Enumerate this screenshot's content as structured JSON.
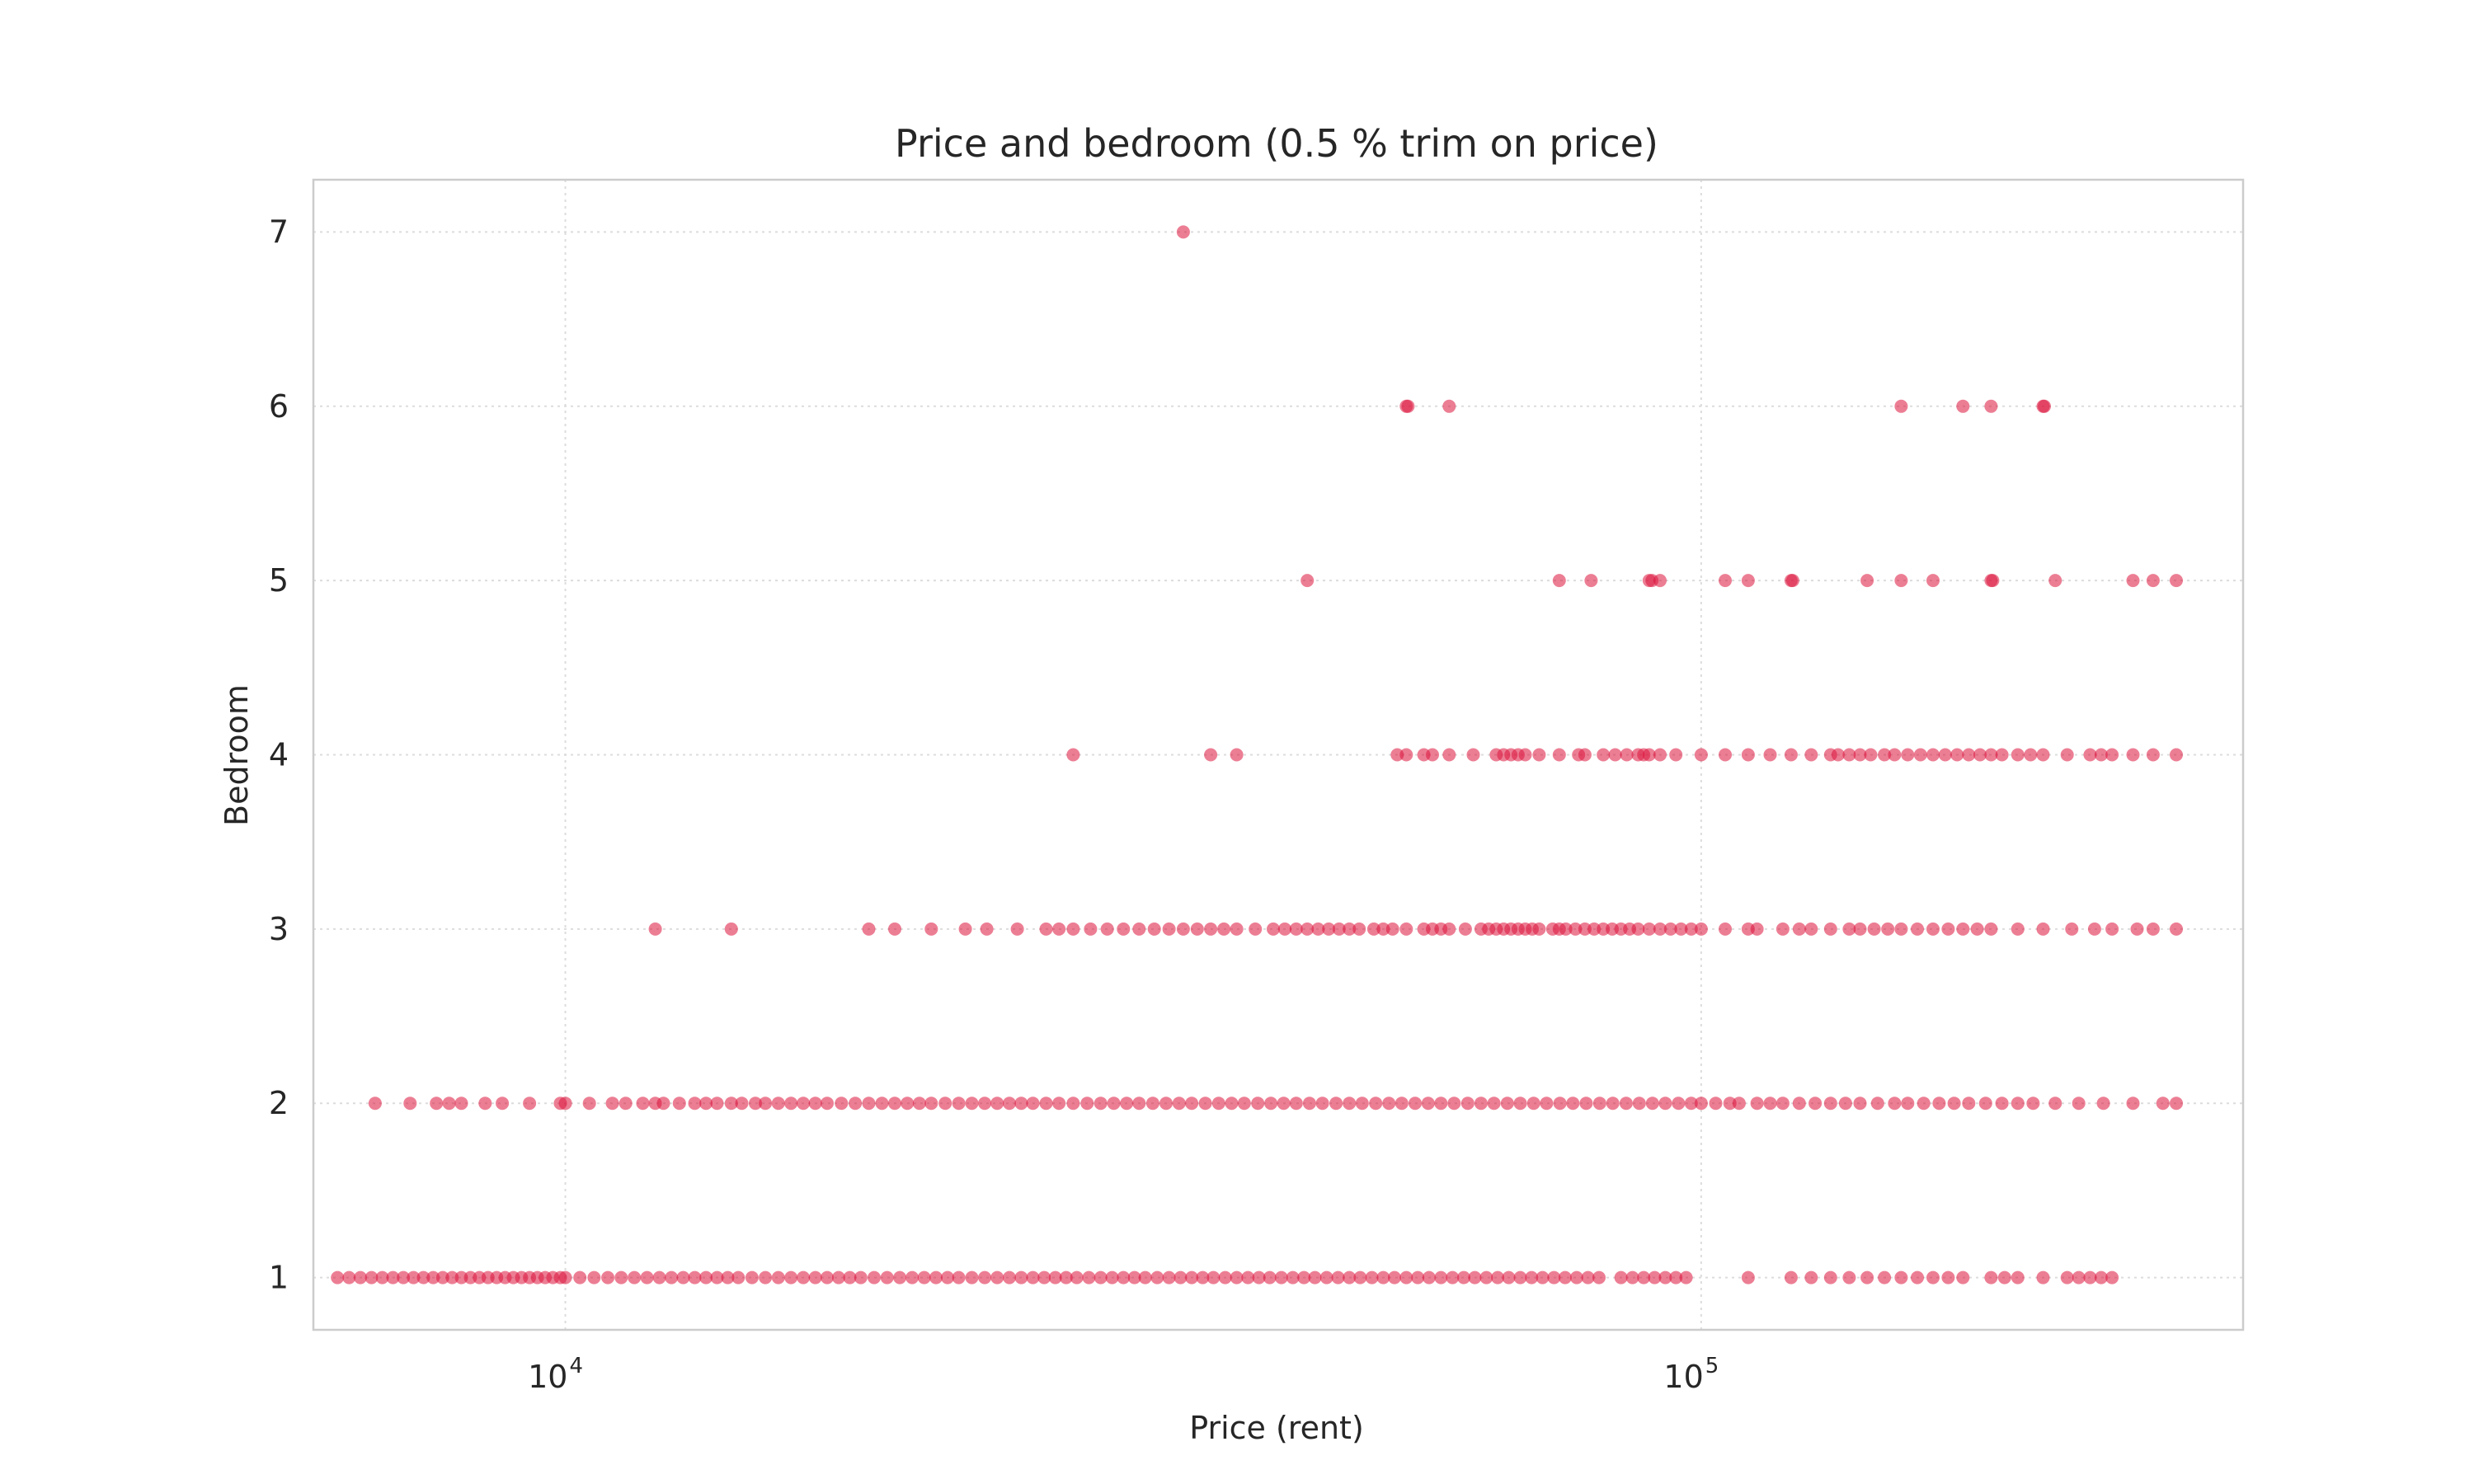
{
  "chart_data": {
    "type": "scatter",
    "title": "Price and bedroom (0.5 % trim on price)",
    "xlabel": "Price (rent)",
    "ylabel": "Bedroom",
    "xscale": "log",
    "xlim": [
      6000,
      300000
    ],
    "ylim": [
      0.7,
      7.3
    ],
    "x_ticks": [
      {
        "value": 10000,
        "base": "10",
        "exp": "4"
      },
      {
        "value": 100000,
        "base": "10",
        "exp": "5"
      }
    ],
    "y_ticks": [
      {
        "value": 1,
        "label": "1"
      },
      {
        "value": 2,
        "label": "2"
      },
      {
        "value": 3,
        "label": "3"
      },
      {
        "value": 4,
        "label": "4"
      },
      {
        "value": 5,
        "label": "5"
      },
      {
        "value": 6,
        "label": "6"
      },
      {
        "value": 7,
        "label": "7"
      }
    ],
    "grid": true,
    "marker_color": "#dc143c",
    "marker_alpha": 0.55,
    "points": [
      {
        "y": 7,
        "x": [
          35000
        ]
      },
      {
        "y": 6,
        "x": [
          55000,
          55200,
          60000,
          150000,
          170000,
          180000,
          200000,
          200500
        ]
      },
      {
        "y": 5,
        "x": [
          45000,
          75000,
          80000,
          90000,
          90500,
          92000,
          105000,
          110000,
          120000,
          120400,
          140000,
          150000,
          160000,
          180000,
          180600,
          205000,
          240000,
          250000,
          262000
        ]
      },
      {
        "y": 4,
        "x": [
          28000,
          37000,
          39000,
          54000,
          55000,
          57000,
          58000,
          60000,
          63000,
          66000,
          67000,
          68000,
          69000,
          70000,
          72000,
          75000,
          78000,
          79000,
          82000,
          84000,
          86000,
          88000,
          89000,
          90000,
          92000,
          95000,
          100000,
          105000,
          110000,
          115000,
          120000,
          125000,
          130000,
          132000,
          135000,
          138000,
          141000,
          145000,
          148000,
          152000,
          156000,
          160000,
          164000,
          168000,
          172000,
          176000,
          180000,
          184000,
          190000,
          195000,
          200000,
          210000,
          220000,
          225000,
          230000,
          240000,
          250000,
          262000
        ]
      },
      {
        "y": 3,
        "x": [
          12000,
          14000,
          18500,
          19500,
          21000,
          22500,
          23500,
          25000,
          26500,
          27200,
          28000,
          29000,
          30000,
          31000,
          32000,
          33000,
          34000,
          35000,
          36000,
          37000,
          38000,
          39000,
          40500,
          42000,
          43000,
          44000,
          45000,
          46000,
          47000,
          48000,
          49000,
          50000,
          51500,
          52500,
          53500,
          55000,
          57000,
          58000,
          59000,
          60000,
          62000,
          64000,
          65000,
          66000,
          67000,
          68000,
          69000,
          70000,
          71000,
          72000,
          74000,
          75000,
          76000,
          77500,
          79000,
          80500,
          82000,
          83500,
          85000,
          86500,
          88000,
          90000,
          92000,
          94000,
          96000,
          98000,
          100000,
          105000,
          110000,
          112000,
          118000,
          122000,
          125000,
          130000,
          135000,
          138000,
          142000,
          146000,
          150000,
          155000,
          160000,
          165000,
          170000,
          175000,
          180000,
          190000,
          200000,
          212000,
          222000,
          230000,
          242000,
          250000,
          262000
        ]
      },
      {
        "y": 2,
        "x": [
          6800,
          7300,
          7700,
          7900,
          8100,
          8500,
          8800,
          9300,
          9900,
          10000,
          10500,
          11000,
          11300,
          11700,
          12000,
          12200,
          12600,
          13000,
          13300,
          13600,
          14000,
          14300,
          14700,
          15000,
          15400,
          15800,
          16200,
          16600,
          17000,
          17500,
          18000,
          18500,
          19000,
          19500,
          20000,
          20500,
          21000,
          21600,
          22200,
          22800,
          23400,
          24000,
          24600,
          25200,
          25800,
          26500,
          27200,
          28000,
          28800,
          29600,
          30400,
          31200,
          32000,
          32900,
          33800,
          34700,
          35600,
          36600,
          37600,
          38600,
          39600,
          40700,
          41800,
          42900,
          44000,
          45200,
          46400,
          47700,
          49000,
          50300,
          51700,
          53100,
          54500,
          56000,
          57500,
          59000,
          60600,
          62300,
          64000,
          65700,
          67500,
          69300,
          71200,
          73100,
          75100,
          77100,
          79200,
          81400,
          83600,
          85900,
          88200,
          90600,
          93000,
          95500,
          98000,
          100000,
          103000,
          106000,
          108000,
          112000,
          115000,
          118000,
          122000,
          126000,
          130000,
          134000,
          138000,
          143000,
          148000,
          152000,
          157000,
          162000,
          167000,
          172000,
          178000,
          184000,
          190000,
          196000,
          205000,
          215000,
          226000,
          240000,
          255000,
          262000
        ]
      },
      {
        "y": 1,
        "x": [
          6300,
          6450,
          6600,
          6750,
          6900,
          7050,
          7200,
          7350,
          7500,
          7650,
          7800,
          7950,
          8100,
          8250,
          8400,
          8550,
          8700,
          8850,
          9000,
          9150,
          9300,
          9450,
          9600,
          9750,
          9900,
          10000,
          10300,
          10600,
          10900,
          11200,
          11500,
          11800,
          12100,
          12400,
          12700,
          13000,
          13300,
          13600,
          13900,
          14200,
          14600,
          15000,
          15400,
          15800,
          16200,
          16600,
          17000,
          17400,
          17800,
          18200,
          18700,
          19200,
          19700,
          20200,
          20700,
          21200,
          21700,
          22200,
          22800,
          23400,
          24000,
          24600,
          25200,
          25800,
          26400,
          27000,
          27600,
          28200,
          28900,
          29600,
          30300,
          31000,
          31700,
          32400,
          33200,
          34000,
          34800,
          35600,
          36400,
          37200,
          38100,
          39000,
          39900,
          40800,
          41700,
          42700,
          43700,
          44700,
          45700,
          46800,
          47900,
          49000,
          50100,
          51300,
          52500,
          53700,
          55000,
          56300,
          57600,
          59000,
          60400,
          61800,
          63200,
          64700,
          66200,
          67700,
          69300,
          70900,
          72500,
          74200,
          75900,
          77700,
          79500,
          81300,
          85000,
          87000,
          89000,
          91000,
          93000,
          95000,
          97000,
          110000,
          120000,
          125000,
          130000,
          135000,
          140000,
          145000,
          150000,
          155000,
          160000,
          165000,
          170000,
          180000,
          185000,
          190000,
          200000,
          210000,
          215000,
          220000,
          225000,
          230000
        ]
      }
    ]
  }
}
